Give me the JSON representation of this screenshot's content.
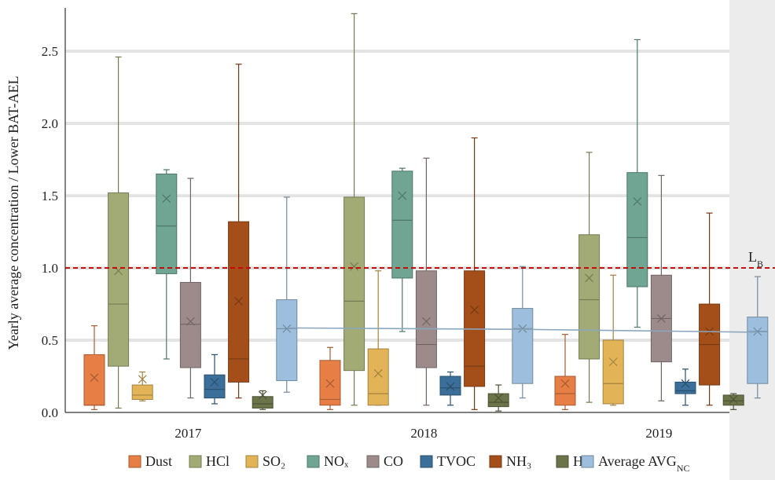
{
  "chart_data": {
    "type": "box",
    "ylabel": "Yearly average concentration / Lower BAT-AEL",
    "ylim": [
      0,
      2.8
    ],
    "yticks": [
      "0.0",
      "0.5",
      "1.0",
      "1.5",
      "2.0",
      "2.5"
    ],
    "grid": true,
    "categories": [
      "2017",
      "2018",
      "2019"
    ],
    "reference_line": {
      "label": "L",
      "label_sub": "B",
      "y": 1.0,
      "color": "#cc0000"
    },
    "mean_trend": [
      0.585,
      0.575,
      0.555
    ],
    "series": [
      {
        "name": "Dust",
        "color": "#e67e45",
        "boxes": [
          {
            "min": 0.02,
            "q1": 0.05,
            "median": 0.05,
            "q3": 0.4,
            "max": 0.6,
            "mean": 0.24
          },
          {
            "min": 0.02,
            "q1": 0.05,
            "median": 0.09,
            "q3": 0.36,
            "max": 0.45,
            "mean": 0.2
          },
          {
            "min": 0.02,
            "q1": 0.05,
            "median": 0.13,
            "q3": 0.25,
            "max": 0.54,
            "mean": 0.2
          }
        ]
      },
      {
        "name": "HCl",
        "color": "#a2ab75",
        "boxes": [
          {
            "min": 0.03,
            "q1": 0.32,
            "median": 0.75,
            "q3": 1.52,
            "max": 2.46,
            "mean": 0.98
          },
          {
            "min": 0.05,
            "q1": 0.29,
            "median": 0.77,
            "q3": 1.49,
            "max": 2.76,
            "mean": 1.01
          },
          {
            "min": 0.07,
            "q1": 0.37,
            "median": 0.78,
            "q3": 1.23,
            "max": 1.8,
            "mean": 0.93
          }
        ]
      },
      {
        "name": "SO₂",
        "color": "#e2b457",
        "boxes": [
          {
            "min": 0.08,
            "q1": 0.09,
            "median": 0.12,
            "q3": 0.19,
            "max": 0.28,
            "mean": 0.23
          },
          {
            "min": 0.05,
            "q1": 0.05,
            "median": 0.13,
            "q3": 0.44,
            "max": 0.98,
            "mean": 0.27
          },
          {
            "min": 0.05,
            "q1": 0.06,
            "median": 0.2,
            "q3": 0.5,
            "max": 0.95,
            "mean": 0.35
          }
        ]
      },
      {
        "name": "NOₓ",
        "color": "#6fa592",
        "boxes": [
          {
            "min": 0.37,
            "q1": 0.96,
            "median": 1.29,
            "q3": 1.65,
            "max": 1.68,
            "mean": 1.48
          },
          {
            "min": 0.56,
            "q1": 0.93,
            "median": 1.33,
            "q3": 1.67,
            "max": 1.69,
            "mean": 1.5
          },
          {
            "min": 0.59,
            "q1": 0.87,
            "median": 1.21,
            "q3": 1.66,
            "max": 2.58,
            "mean": 1.46
          }
        ]
      },
      {
        "name": "CO",
        "color": "#9d8b8b",
        "boxes": [
          {
            "min": 0.1,
            "q1": 0.31,
            "median": 0.61,
            "q3": 0.9,
            "max": 1.62,
            "mean": 0.63
          },
          {
            "min": 0.05,
            "q1": 0.31,
            "median": 0.47,
            "q3": 0.98,
            "max": 1.76,
            "mean": 0.63
          },
          {
            "min": 0.08,
            "q1": 0.35,
            "median": 0.65,
            "q3": 0.95,
            "max": 1.64,
            "mean": 0.65
          }
        ]
      },
      {
        "name": "TVOC",
        "color": "#3b6f99",
        "boxes": [
          {
            "min": 0.06,
            "q1": 0.1,
            "median": 0.16,
            "q3": 0.26,
            "max": 0.4,
            "mean": 0.21
          },
          {
            "min": 0.05,
            "q1": 0.12,
            "median": 0.17,
            "q3": 0.25,
            "max": 0.28,
            "mean": 0.18
          },
          {
            "min": 0.05,
            "q1": 0.13,
            "median": 0.15,
            "q3": 0.21,
            "max": 0.3,
            "mean": 0.2
          }
        ]
      },
      {
        "name": "NH₃",
        "color": "#a44f19",
        "boxes": [
          {
            "min": 0.1,
            "q1": 0.21,
            "median": 0.37,
            "q3": 1.32,
            "max": 2.41,
            "mean": 0.77
          },
          {
            "min": 0.02,
            "q1": 0.18,
            "median": 0.32,
            "q3": 0.98,
            "max": 1.9,
            "mean": 0.71
          },
          {
            "min": 0.05,
            "q1": 0.19,
            "median": 0.47,
            "q3": 0.75,
            "max": 1.38,
            "mean": 0.56
          }
        ]
      },
      {
        "name": "HF",
        "color": "#6b7349",
        "boxes": [
          {
            "min": 0.02,
            "q1": 0.03,
            "median": 0.06,
            "q3": 0.11,
            "max": 0.15,
            "mean": 0.12
          },
          {
            "min": 0.01,
            "q1": 0.04,
            "median": 0.07,
            "q3": 0.13,
            "max": 0.19,
            "mean": 0.1
          },
          {
            "min": 0.02,
            "q1": 0.05,
            "median": 0.08,
            "q3": 0.12,
            "max": 0.13,
            "mean": 0.09
          }
        ]
      },
      {
        "name": "Average AVG",
        "name_sub": "NC",
        "color": "#9dbfdd",
        "boxes": [
          {
            "min": 0.14,
            "q1": 0.22,
            "median": 0.58,
            "q3": 0.78,
            "max": 1.49,
            "mean": 0.58
          },
          {
            "min": 0.1,
            "q1": 0.2,
            "median": 0.58,
            "q3": 0.72,
            "max": 1.01,
            "mean": 0.58
          },
          {
            "min": 0.1,
            "q1": 0.2,
            "median": 0.56,
            "q3": 0.66,
            "max": 0.94,
            "mean": 0.56
          }
        ]
      }
    ]
  }
}
